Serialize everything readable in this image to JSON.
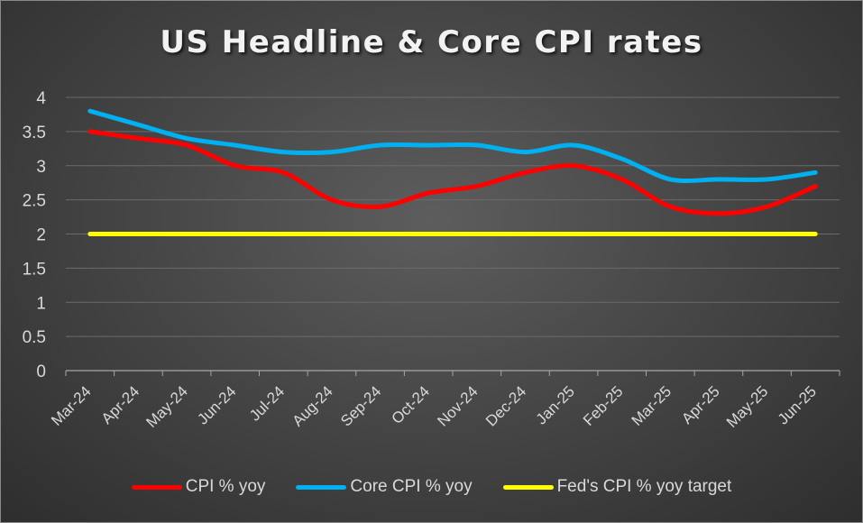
{
  "chart_data": {
    "type": "line",
    "title": "US Headline & Core CPI rates",
    "categories": [
      "Mar-24",
      "Apr-24",
      "May-24",
      "Jun-24",
      "Jul-24",
      "Aug-24",
      "Sep-24",
      "Oct-24",
      "Nov-24",
      "Dec-24",
      "Jan-25",
      "Feb-25",
      "Mar-25",
      "Apr-25",
      "May-25",
      "Jun-25"
    ],
    "series": [
      {
        "name": "CPI % yoy",
        "color": "#ff0000",
        "values": [
          3.5,
          3.4,
          3.3,
          3.0,
          2.9,
          2.5,
          2.4,
          2.6,
          2.7,
          2.9,
          3.0,
          2.8,
          2.4,
          2.3,
          2.4,
          2.7
        ]
      },
      {
        "name": "Core CPI % yoy",
        "color": "#00b0f0",
        "values": [
          3.8,
          3.6,
          3.4,
          3.3,
          3.2,
          3.2,
          3.3,
          3.3,
          3.3,
          3.2,
          3.3,
          3.1,
          2.8,
          2.8,
          2.8,
          2.9
        ]
      },
      {
        "name": "Fed's CPI % yoy target",
        "color": "#ffff00",
        "values": [
          2,
          2,
          2,
          2,
          2,
          2,
          2,
          2,
          2,
          2,
          2,
          2,
          2,
          2,
          2,
          2
        ]
      }
    ],
    "yticks": [
      "0",
      "0.5",
      "1",
      "1.5",
      "2",
      "2.5",
      "3",
      "3.5",
      "4"
    ],
    "ylim": [
      0,
      4
    ],
    "xlabel": "",
    "ylabel": "",
    "grid": true,
    "legend": "bottom"
  }
}
